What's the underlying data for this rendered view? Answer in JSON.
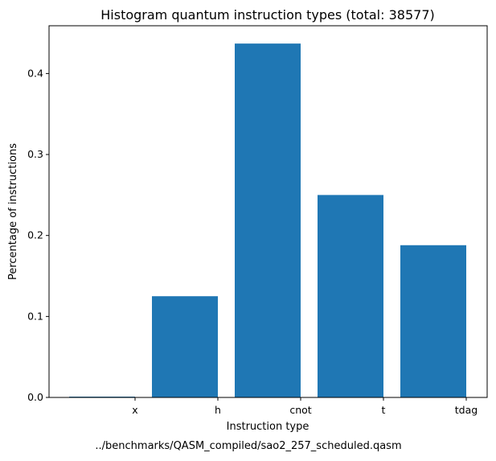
{
  "chart_data": {
    "type": "bar",
    "title": "Histogram quantum instruction types (total: 38577)",
    "xlabel": "Instruction type",
    "ylabel": "Percentage of instructions",
    "caption": "../benchmarks/QASM_compiled/sao2_257_scheduled.qasm",
    "categories": [
      "x",
      "h",
      "cnot",
      "t",
      "tdag"
    ],
    "values": [
      0.001,
      0.125,
      0.437,
      0.25,
      0.188
    ],
    "ylim": [
      0,
      0.459
    ],
    "yticks": [
      0.0,
      0.1,
      0.2,
      0.3,
      0.4
    ],
    "ytick_labels": [
      "0.0",
      "0.1",
      "0.2",
      "0.3",
      "0.4"
    ],
    "bar_color": "#1f77b4",
    "grid": false,
    "legend": "none"
  }
}
